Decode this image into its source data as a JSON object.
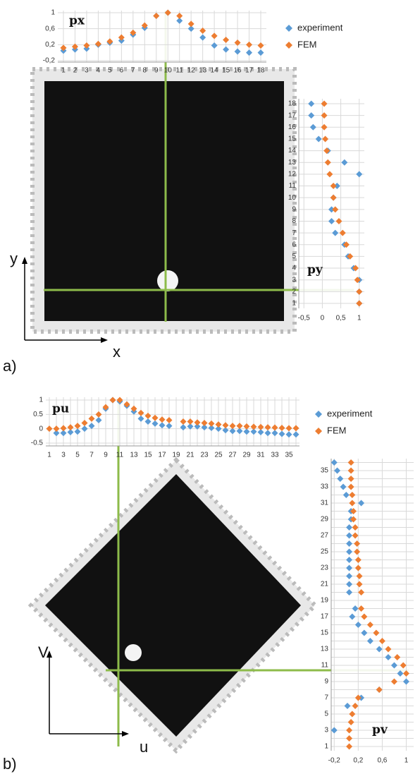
{
  "labels": {
    "panel_a": "a)",
    "panel_b": "b)",
    "x": "x",
    "y": "y",
    "u": "u",
    "v": "V"
  },
  "chart_data": [
    {
      "type": "dot",
      "orientation": "v",
      "title": "px",
      "legend": true,
      "grid": true,
      "categories": [
        1,
        2,
        3,
        4,
        5,
        6,
        7,
        8,
        9,
        10,
        11,
        12,
        13,
        14,
        15,
        16,
        17,
        18
      ],
      "ylim": [
        -0.2,
        1
      ],
      "yticks": [
        {
          "value": -0.2,
          "label": "-0,2"
        },
        {
          "value": 0.2,
          "label": "0,2"
        },
        {
          "value": 0.6,
          "label": "0,6"
        },
        1
      ],
      "series": [
        {
          "name": "experiment",
          "color": "#5b9bd5",
          "values": [
            0.05,
            0.08,
            0.1,
            0.2,
            0.25,
            0.3,
            0.45,
            0.62,
            0.92,
            1.0,
            0.8,
            0.6,
            0.38,
            0.18,
            0.08,
            0.03,
            0.0,
            0.0
          ]
        },
        {
          "name": "FEM",
          "color": "#ed7d31",
          "values": [
            0.12,
            0.15,
            0.18,
            0.22,
            0.28,
            0.38,
            0.5,
            0.68,
            0.92,
            1.0,
            0.92,
            0.72,
            0.55,
            0.42,
            0.32,
            0.25,
            0.2,
            0.18
          ]
        }
      ]
    },
    {
      "type": "dot",
      "orientation": "h",
      "title": "py",
      "grid": true,
      "categories": [
        1,
        2,
        3,
        4,
        5,
        6,
        7,
        8,
        9,
        10,
        11,
        12,
        13,
        14,
        15,
        16,
        17,
        18
      ],
      "xlim": [
        -0.6,
        1.1
      ],
      "xticks": [
        {
          "value": -0.5,
          "label": "-0,5"
        },
        0,
        {
          "value": 0.5,
          "label": "0,5"
        },
        1
      ],
      "series": [
        {
          "color": "#5b9bd5",
          "values": [
            1.0,
            1.0,
            1.0,
            0.85,
            0.7,
            0.6,
            0.35,
            0.25,
            0.25,
            0.3,
            0.4,
            1.0,
            0.6,
            0.15,
            -0.1,
            -0.25,
            -0.3,
            -0.3
          ]
        },
        {
          "color": "#ed7d31",
          "values": [
            1.0,
            1.0,
            0.95,
            0.9,
            0.75,
            0.65,
            0.55,
            0.45,
            0.35,
            0.3,
            0.3,
            0.2,
            0.15,
            0.12,
            0.08,
            0.05,
            0.05,
            0.05
          ]
        }
      ]
    },
    {
      "type": "dot",
      "orientation": "v",
      "title": "pu",
      "legend": true,
      "grid": true,
      "categories": [
        1,
        null,
        3,
        null,
        5,
        null,
        7,
        null,
        9,
        null,
        11,
        null,
        13,
        null,
        15,
        null,
        17,
        null,
        19,
        null,
        21,
        null,
        23,
        null,
        25,
        null,
        27,
        null,
        29,
        null,
        31,
        null,
        33,
        null,
        35,
        null
      ],
      "ylim": [
        -0.5,
        1
      ],
      "yticks": [
        -0.5,
        0,
        0.5,
        1
      ],
      "series": [
        {
          "name": "experiment",
          "color": "#5b9bd5",
          "values": [
            null,
            -0.15,
            -0.15,
            -0.12,
            -0.1,
            0,
            0.1,
            0.3,
            0.7,
            1.0,
            0.95,
            0.8,
            0.6,
            0.35,
            0.25,
            0.18,
            0.12,
            0.1,
            null,
            0.05,
            0.08,
            0.08,
            0.05,
            0.03,
            0,
            -0.05,
            -0.08,
            -0.08,
            -0.1,
            -0.1,
            -0.12,
            -0.15,
            -0.15,
            -0.18,
            -0.2,
            -0.2
          ]
        },
        {
          "name": "FEM",
          "color": "#ed7d31",
          "values": [
            0,
            0,
            0.02,
            0.05,
            0.1,
            0.2,
            0.35,
            0.5,
            0.75,
            1.0,
            1.0,
            0.85,
            0.7,
            0.55,
            0.45,
            0.38,
            0.32,
            0.3,
            null,
            0.25,
            0.25,
            0.22,
            0.2,
            0.18,
            0.15,
            0.12,
            0.1,
            0.1,
            0.08,
            0.07,
            0.06,
            0.05,
            0.04,
            0.03,
            0.02,
            0.02
          ]
        }
      ]
    },
    {
      "type": "dot",
      "orientation": "h",
      "title": "pv",
      "grid": true,
      "categories": [
        1,
        null,
        3,
        null,
        5,
        null,
        7,
        null,
        9,
        null,
        11,
        null,
        13,
        null,
        15,
        null,
        17,
        null,
        19,
        null,
        21,
        null,
        23,
        null,
        25,
        null,
        27,
        null,
        29,
        null,
        31,
        null,
        33,
        null,
        35,
        null
      ],
      "xlim": [
        -0.25,
        1.1
      ],
      "xticks": [
        {
          "value": -0.2,
          "label": "-0,2"
        },
        {
          "value": 0.2,
          "label": "0,2"
        },
        {
          "value": 0.6,
          "label": "0,6"
        },
        1
      ],
      "series": [
        {
          "color": "#5b9bd5",
          "values": [
            null,
            null,
            -0.2,
            null,
            null,
            0.02,
            0.25,
            0.55,
            1.0,
            0.9,
            0.8,
            0.7,
            0.55,
            0.4,
            0.3,
            0.2,
            0.1,
            0.15,
            null,
            0.05,
            0.05,
            0.05,
            0.05,
            0.05,
            0.05,
            0.05,
            0.05,
            0.05,
            0.08,
            0.08,
            0.25,
            0.0,
            -0.05,
            -0.1,
            -0.15,
            -0.2
          ]
        },
        {
          "color": "#ed7d31",
          "values": [
            0.05,
            0.05,
            0.05,
            0.08,
            0.1,
            0.15,
            0.2,
            0.55,
            0.8,
            1.0,
            0.95,
            0.85,
            0.7,
            0.6,
            0.5,
            0.4,
            0.3,
            0.25,
            null,
            0.25,
            0.22,
            0.22,
            0.2,
            0.2,
            0.18,
            0.18,
            0.15,
            0.15,
            0.12,
            0.12,
            0.1,
            0.1,
            0.08,
            0.08,
            0.08,
            0.08
          ]
        }
      ]
    }
  ]
}
